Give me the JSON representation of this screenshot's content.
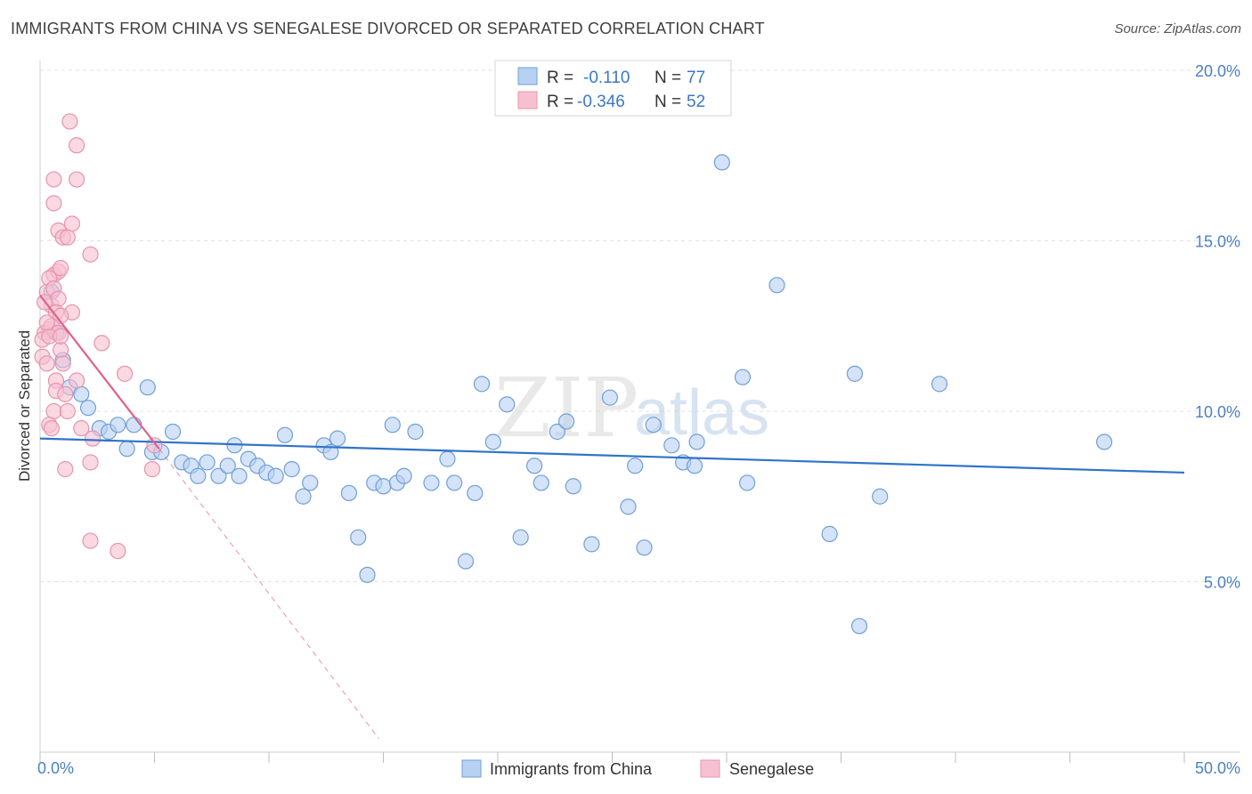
{
  "header": {
    "title": "IMMIGRANTS FROM CHINA VS SENEGALESE DIVORCED OR SEPARATED CORRELATION CHART",
    "source": "Source: ZipAtlas.com"
  },
  "legend_box": {
    "r_label": "R =",
    "n_label": "N =",
    "rows": [
      {
        "r": "-0.110",
        "n": "77"
      },
      {
        "r": "-0.346",
        "n": "52"
      }
    ]
  },
  "watermark": {
    "part1": "ZIP",
    "part2": "atlas"
  },
  "colors": {
    "china_fill": "#b7d1f2",
    "china_stroke": "#6f9fd8",
    "china_line": "#2f74c8",
    "seneg_fill": "#f7c0d1",
    "seneg_stroke": "#e893ad",
    "seneg_line": "#e0608e",
    "grid": "#e3e3e3",
    "tick": "#4a7fc9"
  },
  "chart_data": {
    "type": "scatter",
    "title": "IMMIGRANTS FROM CHINA VS SENEGALESE DIVORCED OR SEPARATED CORRELATION CHART",
    "xlabel": "",
    "ylabel": "Divorced or Separated",
    "xlim": [
      0,
      50
    ],
    "ylim": [
      0,
      20
    ],
    "x_tick_labels": {
      "left": "0.0%",
      "right": "50.0%"
    },
    "y_ticks": [
      {
        "value": 5,
        "label": "5.0%"
      },
      {
        "value": 10,
        "label": "10.0%"
      },
      {
        "value": 15,
        "label": "15.0%"
      },
      {
        "value": 20,
        "label": "20.0%"
      }
    ],
    "series": [
      {
        "name": "Immigrants from China",
        "R": -0.11,
        "N": 77,
        "trend": {
          "x0": 0,
          "y0": 9.2,
          "x1": 50,
          "y1": 8.2
        },
        "points": [
          [
            0.7,
            12.3
          ],
          [
            1.0,
            11.5
          ],
          [
            1.3,
            10.7
          ],
          [
            1.8,
            10.5
          ],
          [
            2.1,
            10.1
          ],
          [
            2.6,
            9.5
          ],
          [
            3.0,
            9.4
          ],
          [
            3.4,
            9.6
          ],
          [
            3.8,
            8.9
          ],
          [
            4.1,
            9.6
          ],
          [
            4.7,
            10.7
          ],
          [
            4.9,
            8.8
          ],
          [
            5.3,
            8.8
          ],
          [
            5.8,
            9.4
          ],
          [
            6.2,
            8.5
          ],
          [
            6.6,
            8.4
          ],
          [
            6.9,
            8.1
          ],
          [
            7.3,
            8.5
          ],
          [
            7.8,
            8.1
          ],
          [
            8.2,
            8.4
          ],
          [
            8.5,
            9.0
          ],
          [
            8.7,
            8.1
          ],
          [
            9.1,
            8.6
          ],
          [
            9.5,
            8.4
          ],
          [
            9.9,
            8.2
          ],
          [
            10.3,
            8.1
          ],
          [
            10.7,
            9.3
          ],
          [
            11.0,
            8.3
          ],
          [
            11.5,
            7.5
          ],
          [
            11.8,
            7.9
          ],
          [
            12.4,
            9.0
          ],
          [
            12.7,
            8.8
          ],
          [
            13.0,
            9.2
          ],
          [
            13.5,
            7.6
          ],
          [
            13.9,
            6.3
          ],
          [
            14.3,
            5.2
          ],
          [
            14.6,
            7.9
          ],
          [
            15.0,
            7.8
          ],
          [
            15.4,
            9.6
          ],
          [
            15.6,
            7.9
          ],
          [
            15.9,
            8.1
          ],
          [
            16.4,
            9.4
          ],
          [
            17.1,
            7.9
          ],
          [
            17.8,
            8.6
          ],
          [
            18.1,
            7.9
          ],
          [
            18.6,
            5.6
          ],
          [
            19.0,
            7.6
          ],
          [
            19.3,
            10.8
          ],
          [
            19.8,
            9.1
          ],
          [
            20.4,
            10.2
          ],
          [
            21.0,
            6.3
          ],
          [
            21.6,
            8.4
          ],
          [
            21.9,
            7.9
          ],
          [
            22.6,
            9.4
          ],
          [
            23.0,
            9.7
          ],
          [
            23.3,
            7.8
          ],
          [
            24.1,
            6.1
          ],
          [
            24.9,
            10.4
          ],
          [
            25.7,
            7.2
          ],
          [
            26.0,
            8.4
          ],
          [
            26.4,
            6.0
          ],
          [
            26.8,
            9.6
          ],
          [
            27.6,
            9.0
          ],
          [
            28.1,
            8.5
          ],
          [
            28.6,
            8.4
          ],
          [
            28.7,
            9.1
          ],
          [
            29.8,
            17.3
          ],
          [
            30.7,
            11.0
          ],
          [
            30.9,
            7.9
          ],
          [
            32.2,
            13.7
          ],
          [
            34.5,
            6.4
          ],
          [
            35.6,
            11.1
          ],
          [
            35.8,
            3.7
          ],
          [
            36.7,
            7.5
          ],
          [
            39.3,
            10.8
          ],
          [
            46.5,
            9.1
          ],
          [
            0.5,
            13.5
          ]
        ]
      },
      {
        "name": "Senegalese",
        "R": -0.346,
        "N": 52,
        "trend": {
          "x0": 0,
          "y0": 13.4,
          "x1": 5.2,
          "y1": 8.9
        },
        "trend_dashed": {
          "x0": 5.2,
          "y0": 8.9,
          "x1": 14.8,
          "y1": 0.4
        },
        "points": [
          [
            1.3,
            18.5
          ],
          [
            1.6,
            17.8
          ],
          [
            1.6,
            16.8
          ],
          [
            0.6,
            16.8
          ],
          [
            0.6,
            16.1
          ],
          [
            1.4,
            15.5
          ],
          [
            0.8,
            15.3
          ],
          [
            1.0,
            15.1
          ],
          [
            1.2,
            15.1
          ],
          [
            2.2,
            14.6
          ],
          [
            0.6,
            14.0
          ],
          [
            0.8,
            14.1
          ],
          [
            0.4,
            13.9
          ],
          [
            0.9,
            14.2
          ],
          [
            0.3,
            13.5
          ],
          [
            0.6,
            13.6
          ],
          [
            0.5,
            13.1
          ],
          [
            0.8,
            13.3
          ],
          [
            0.2,
            13.2
          ],
          [
            0.7,
            12.9
          ],
          [
            1.4,
            12.9
          ],
          [
            0.9,
            12.8
          ],
          [
            0.4,
            12.4
          ],
          [
            0.2,
            12.3
          ],
          [
            0.5,
            12.5
          ],
          [
            0.8,
            12.3
          ],
          [
            0.1,
            12.1
          ],
          [
            0.4,
            12.2
          ],
          [
            2.7,
            12.0
          ],
          [
            0.9,
            11.8
          ],
          [
            0.1,
            11.6
          ],
          [
            0.3,
            11.4
          ],
          [
            1.0,
            11.4
          ],
          [
            3.7,
            11.1
          ],
          [
            0.7,
            10.9
          ],
          [
            1.6,
            10.9
          ],
          [
            0.7,
            10.6
          ],
          [
            1.1,
            10.5
          ],
          [
            0.6,
            10.0
          ],
          [
            1.2,
            10.0
          ],
          [
            0.4,
            9.6
          ],
          [
            0.5,
            9.5
          ],
          [
            1.8,
            9.5
          ],
          [
            2.3,
            9.2
          ],
          [
            5.0,
            9.0
          ],
          [
            2.2,
            8.5
          ],
          [
            1.1,
            8.3
          ],
          [
            4.9,
            8.3
          ],
          [
            2.2,
            6.2
          ],
          [
            3.4,
            5.9
          ],
          [
            0.3,
            12.6
          ],
          [
            0.9,
            12.2
          ]
        ]
      }
    ]
  },
  "bottom_legend": {
    "items": [
      {
        "label": "Immigrants from China"
      },
      {
        "label": "Senegalese"
      }
    ]
  }
}
